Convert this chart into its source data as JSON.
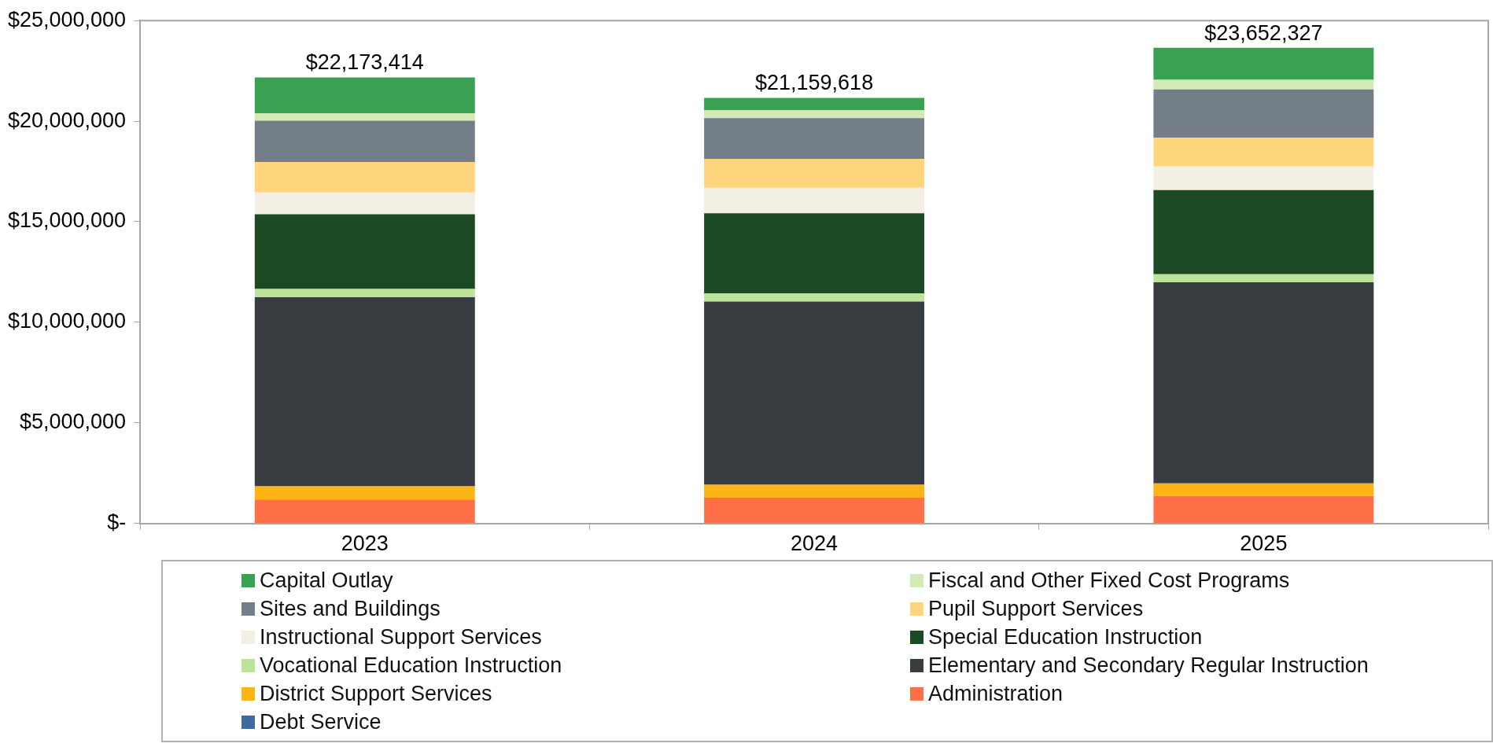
{
  "chart_data": {
    "type": "bar",
    "stacked": true,
    "categories": [
      "2023",
      "2024",
      "2025"
    ],
    "series": [
      {
        "name": "Debt Service",
        "color": "#3e6aa0",
        "values": [
          0,
          0,
          0
        ]
      },
      {
        "name": "Administration",
        "color": "#ff7049",
        "values": [
          1190000,
          1270000,
          1360000
        ]
      },
      {
        "name": "District Support Services",
        "color": "#fdb515",
        "values": [
          650000,
          650000,
          630000
        ]
      },
      {
        "name": "Elementary and Secondary Regular Instruction",
        "color": "#383d42",
        "values": [
          9403414,
          9109618,
          10002327
        ]
      },
      {
        "name": "Vocational Education Instruction",
        "color": "#bde29a",
        "values": [
          410000,
          400000,
          400000
        ]
      },
      {
        "name": "Special Education Instruction",
        "color": "#1b4a25",
        "values": [
          3720000,
          3990000,
          4180000
        ]
      },
      {
        "name": "Instructional Support Services",
        "color": "#f3efe4",
        "values": [
          1080000,
          1270000,
          1170000
        ]
      },
      {
        "name": "Pupil Support Services",
        "color": "#ffd57e",
        "values": [
          1520000,
          1440000,
          1430000
        ]
      },
      {
        "name": "Sites and Buildings",
        "color": "#737e88",
        "values": [
          2050000,
          2020000,
          2400000
        ]
      },
      {
        "name": "Fiscal and Other Fixed Cost Programs",
        "color": "#d2ebb5",
        "values": [
          370000,
          400000,
          480000
        ]
      },
      {
        "name": "Capital Outlay",
        "color": "#3ba152",
        "values": [
          1780000,
          610000,
          1600000
        ]
      }
    ],
    "totals": [
      "$22,173,414",
      "$21,159,618",
      "$23,652,327"
    ],
    "ylim": [
      0,
      25000000
    ],
    "yticks": [
      {
        "value": 0,
        "label": "$-"
      },
      {
        "value": 5000000,
        "label": "$5,000,000"
      },
      {
        "value": 10000000,
        "label": "$10,000,000"
      },
      {
        "value": 15000000,
        "label": "$15,000,000"
      },
      {
        "value": 20000000,
        "label": "$20,000,000"
      },
      {
        "value": 25000000,
        "label": "$25,000,000"
      }
    ],
    "grid": false,
    "legend": "bottom"
  }
}
